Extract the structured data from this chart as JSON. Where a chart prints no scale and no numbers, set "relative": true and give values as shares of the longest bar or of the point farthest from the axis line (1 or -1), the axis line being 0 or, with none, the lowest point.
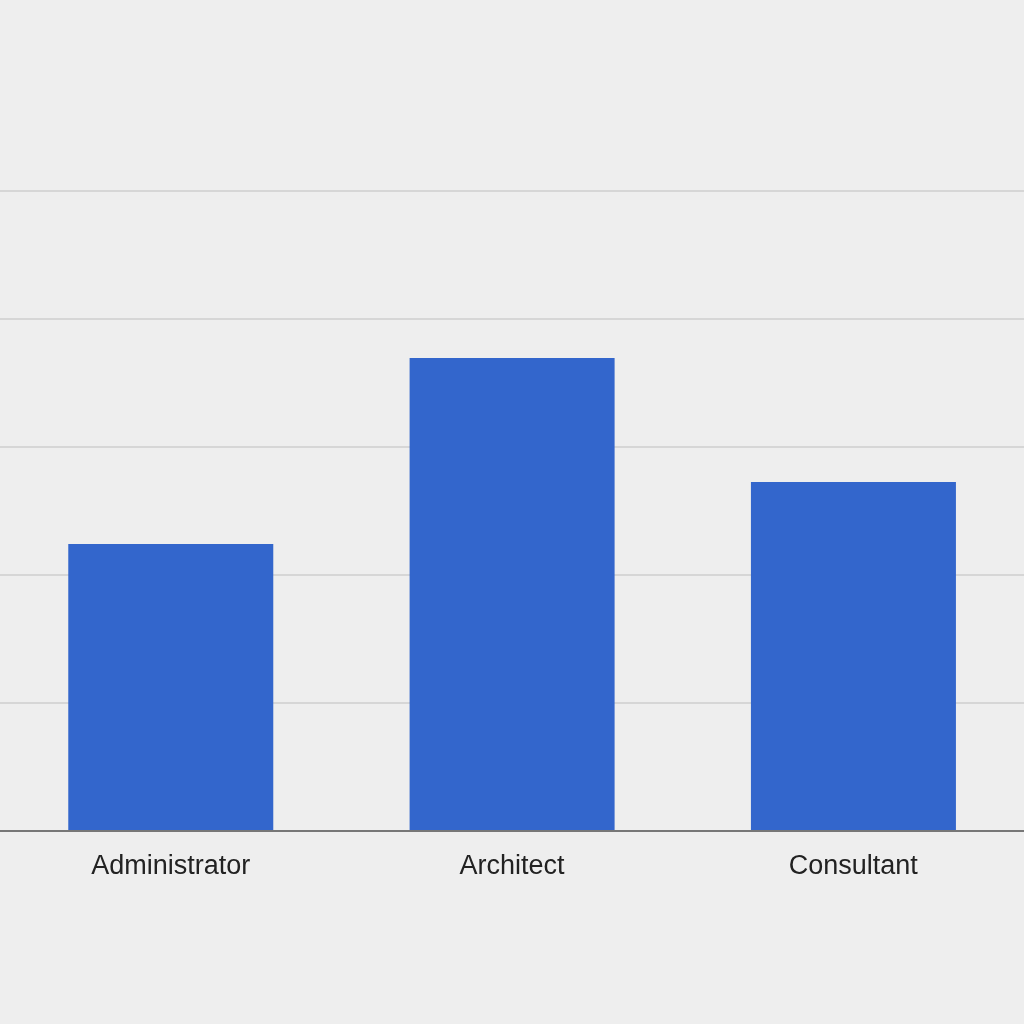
{
  "chart_data": {
    "type": "bar",
    "relative": true,
    "categories": [
      "Administrator",
      "Architect",
      "Consultant"
    ],
    "values": [
      0.607,
      1,
      0.738
    ],
    "color": "#3366cc",
    "grid": "y"
  }
}
